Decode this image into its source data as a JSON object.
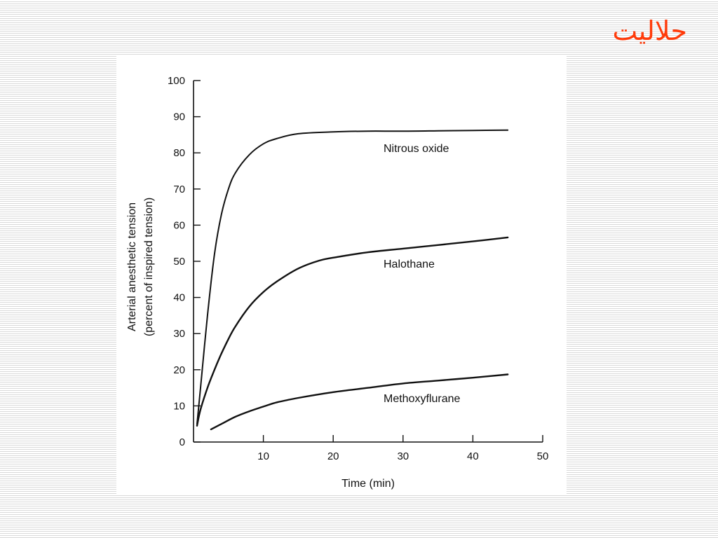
{
  "slide": {
    "title": "حلاليت"
  },
  "chart_data": {
    "type": "line",
    "xlabel": "Time (min)",
    "ylabel_line1": "Arterial anesthetic tension",
    "ylabel_line2": "(percent of inspired tension)",
    "xlim": [
      0,
      50
    ],
    "ylim": [
      0,
      100
    ],
    "xticks": [
      10,
      20,
      30,
      40,
      50
    ],
    "yticks": [
      0,
      10,
      20,
      30,
      40,
      50,
      60,
      70,
      80,
      90,
      100
    ],
    "grid": false,
    "series": [
      {
        "name": "Nitrous oxide",
        "x": [
          0.5,
          1,
          2,
          3,
          4,
          5,
          6,
          8,
          10,
          12,
          15,
          20,
          25,
          30,
          35,
          40,
          45
        ],
        "y": [
          5,
          15,
          35,
          52,
          63,
          70,
          74.5,
          79.5,
          82.5,
          84,
          85.3,
          85.8,
          86,
          86,
          86.1,
          86.2,
          86.3
        ]
      },
      {
        "name": "Halothane",
        "x": [
          0.5,
          1,
          2,
          3,
          4,
          5,
          6,
          8,
          10,
          12,
          15,
          18,
          20,
          25,
          30,
          35,
          40,
          45
        ],
        "y": [
          4.5,
          9,
          15,
          20,
          24.5,
          28.5,
          32,
          37.5,
          41.5,
          44.5,
          48,
          50.2,
          51,
          52.5,
          53.5,
          54.5,
          55.5,
          56.6
        ]
      },
      {
        "name": "Methoxyflurane",
        "x": [
          2.5,
          4,
          6,
          8,
          10,
          12,
          15,
          20,
          25,
          30,
          35,
          40,
          45
        ],
        "y": [
          3.5,
          5,
          7,
          8.5,
          9.8,
          11,
          12.2,
          13.8,
          15,
          16.2,
          17,
          17.8,
          18.7
        ]
      }
    ]
  }
}
